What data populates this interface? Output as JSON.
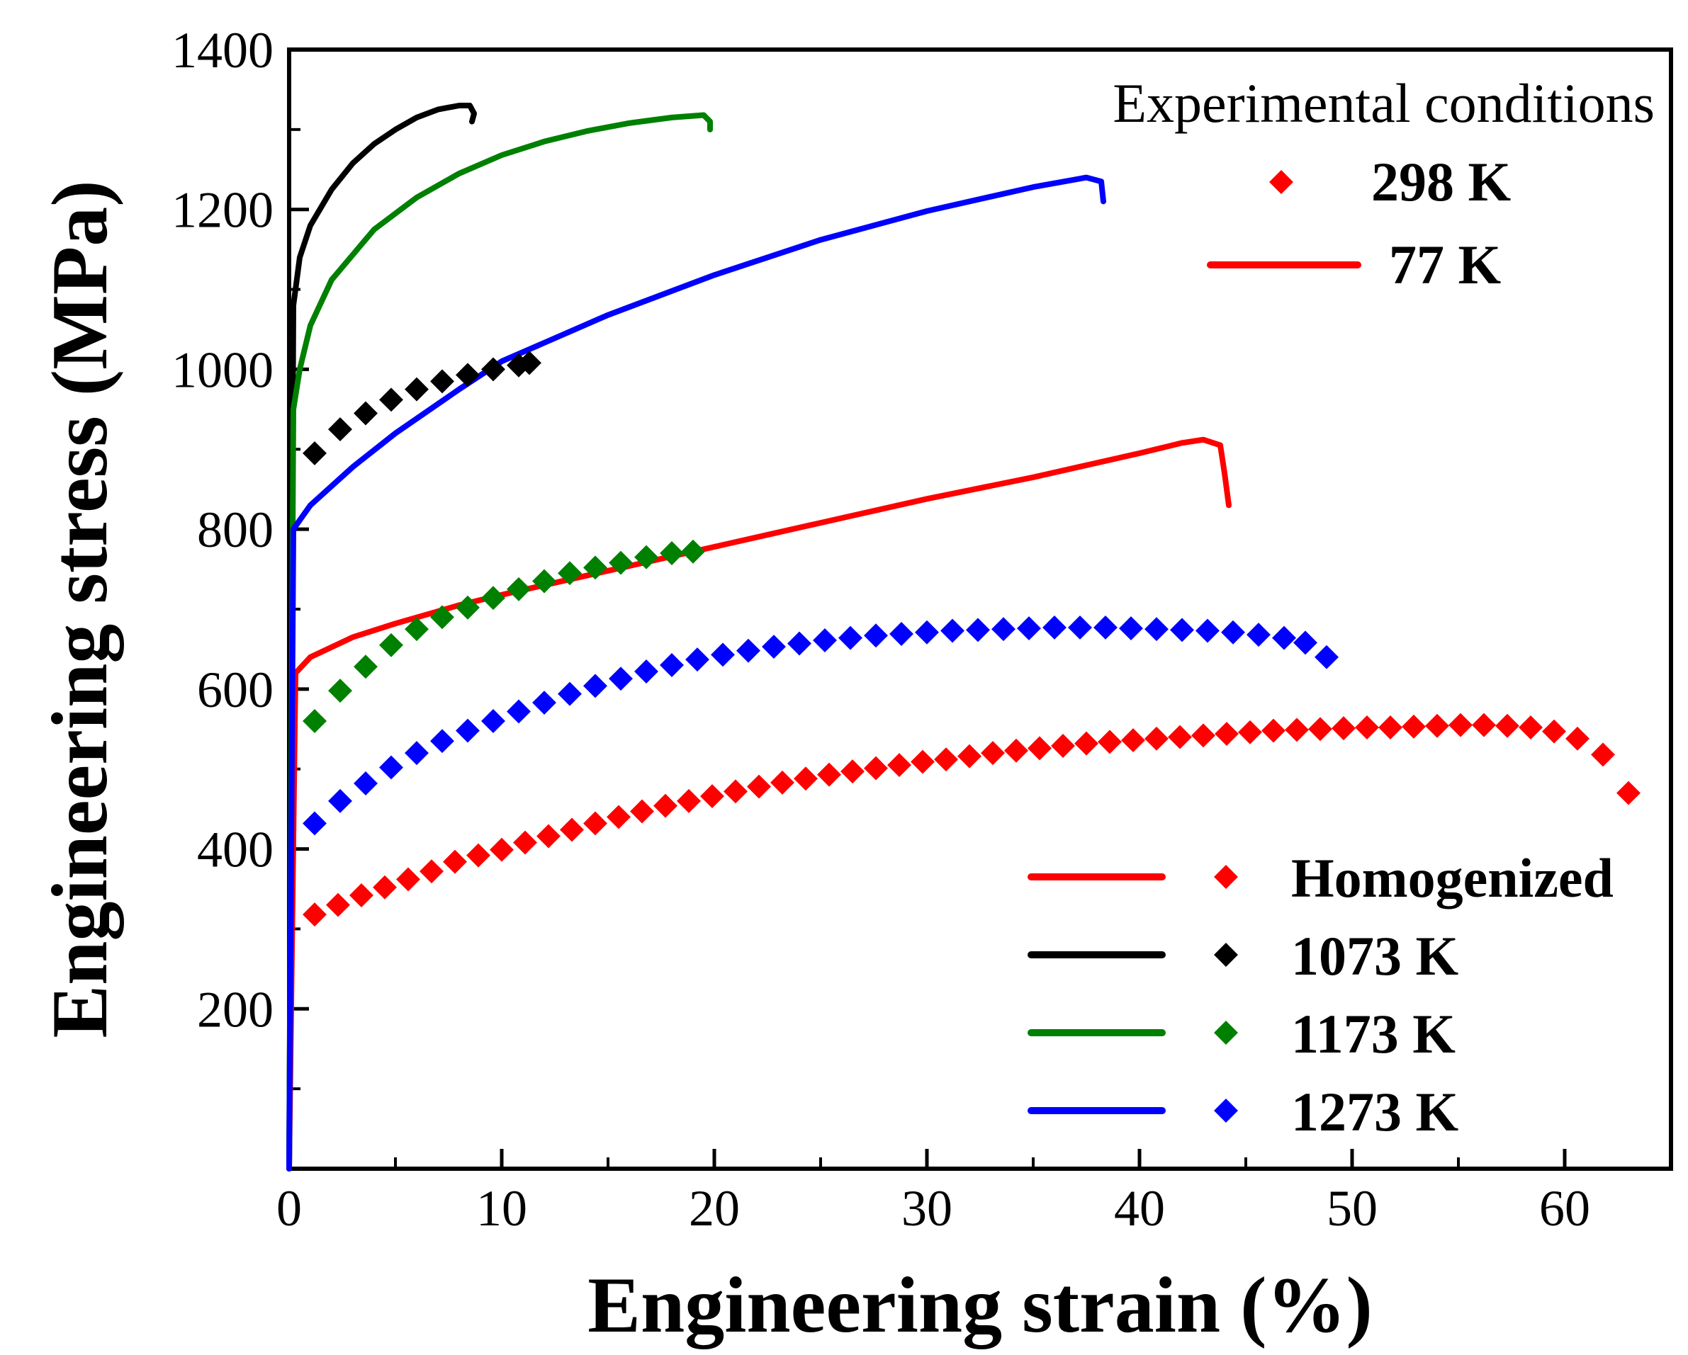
{
  "chart_data": {
    "type": "line",
    "title": "",
    "xlabel": "Engineering strain (%)",
    "ylabel": "Engineering stress (MPa)",
    "xlim": [
      0,
      65
    ],
    "ylim": [
      0,
      1400
    ],
    "x_ticks": [
      "0",
      "10",
      "20",
      "30",
      "40",
      "50",
      "60"
    ],
    "x_tick_values": [
      0,
      10,
      20,
      30,
      40,
      50,
      60
    ],
    "y_ticks": [
      "200",
      "400",
      "600",
      "800",
      "1000",
      "1200",
      "1400"
    ],
    "y_tick_values": [
      200,
      400,
      600,
      800,
      1000,
      1200,
      1400
    ],
    "colors": {
      "homogenized": "#ff0000",
      "k1073": "#000000",
      "k1173": "#008000",
      "k1273": "#0000ff"
    },
    "legend_conditions": {
      "title": "Experimental conditions",
      "marker_label": "298 K",
      "line_label": "77  K"
    },
    "legend_materials": [
      {
        "name": "Homogenized",
        "color": "#ff0000"
      },
      {
        "name": "1073 K",
        "color": "#000000"
      },
      {
        "name": "1173 K",
        "color": "#008000"
      },
      {
        "name": "1273 K",
        "color": "#0000ff"
      }
    ],
    "series": [
      {
        "name": "Homogenized 77 K",
        "style": "line",
        "color": "#ff0000",
        "x": [
          0,
          0.3,
          1,
          3,
          5,
          8,
          10,
          15,
          20,
          25,
          30,
          35,
          40,
          42,
          43,
          43.8,
          44,
          44.2
        ],
        "y": [
          0,
          620,
          640,
          665,
          682,
          705,
          718,
          748,
          778,
          808,
          838,
          865,
          895,
          908,
          912,
          905,
          870,
          830
        ]
      },
      {
        "name": "1073 K 77 K",
        "style": "line",
        "color": "#000000",
        "x": [
          0,
          0.2,
          0.5,
          1,
          2,
          3,
          4,
          5,
          6,
          7,
          8,
          8.5,
          8.7,
          8.6
        ],
        "y": [
          0,
          1080,
          1140,
          1180,
          1225,
          1258,
          1282,
          1300,
          1315,
          1325,
          1330,
          1330,
          1320,
          1310
        ]
      },
      {
        "name": "1173 K 77 K",
        "style": "line",
        "color": "#008000",
        "x": [
          0,
          0.2,
          0.5,
          1,
          2,
          4,
          6,
          8,
          10,
          12,
          14,
          16,
          18,
          19.5,
          19.8,
          19.8
        ],
        "y": [
          0,
          950,
          1000,
          1055,
          1112,
          1175,
          1215,
          1245,
          1268,
          1285,
          1298,
          1308,
          1315,
          1318,
          1310,
          1300
        ]
      },
      {
        "name": "1273 K 77 K",
        "style": "line",
        "color": "#0000ff",
        "x": [
          0,
          0.2,
          1,
          3,
          5,
          8,
          10,
          15,
          20,
          25,
          30,
          35,
          37.5,
          38.2,
          38.3
        ],
        "y": [
          0,
          800,
          830,
          878,
          920,
          975,
          1010,
          1068,
          1118,
          1162,
          1198,
          1228,
          1240,
          1235,
          1210
        ]
      },
      {
        "name": "Homogenized 298 K",
        "style": "marker",
        "color": "#ff0000",
        "x": [
          1.2,
          2.3,
          3.4,
          4.5,
          5.6,
          6.7,
          7.8,
          8.9,
          10,
          11.1,
          12.2,
          13.3,
          14.4,
          15.5,
          16.6,
          17.7,
          18.8,
          19.9,
          21,
          22.1,
          23.2,
          24.3,
          25.4,
          26.5,
          27.6,
          28.7,
          29.8,
          30.9,
          32,
          33.1,
          34.2,
          35.3,
          36.4,
          37.5,
          38.6,
          39.7,
          40.8,
          41.9,
          43,
          44.1,
          45.2,
          46.3,
          47.4,
          48.5,
          49.6,
          50.7,
          51.8,
          52.9,
          54,
          55.1,
          56.2,
          57.3,
          58.4,
          59.5,
          60.6,
          61.8,
          63
        ],
        "y": [
          318,
          330,
          342,
          352,
          362,
          372,
          384,
          392,
          399,
          408,
          416,
          424,
          432,
          440,
          447,
          454,
          460,
          466,
          472,
          478,
          483,
          488,
          493,
          497,
          501,
          505,
          509,
          512,
          516,
          520,
          523,
          526,
          529,
          532,
          534,
          536,
          538,
          540,
          542,
          544,
          546,
          548,
          549,
          550,
          551,
          552,
          552,
          553,
          554,
          555,
          555,
          554,
          552,
          547,
          538,
          518,
          470
        ]
      },
      {
        "name": "1073 K 298 K",
        "style": "marker",
        "color": "#000000",
        "x": [
          1.2,
          2.4,
          3.6,
          4.8,
          6,
          7.2,
          8.4,
          9.6,
          10.8,
          11.3
        ],
        "y": [
          895,
          925,
          945,
          962,
          975,
          985,
          993,
          1000,
          1005,
          1008
        ]
      },
      {
        "name": "1173 K 298 K",
        "style": "marker",
        "color": "#008000",
        "x": [
          1.2,
          2.4,
          3.6,
          4.8,
          6,
          7.2,
          8.4,
          9.6,
          10.8,
          12,
          13.2,
          14.4,
          15.6,
          16.8,
          18,
          19
        ],
        "y": [
          560,
          598,
          628,
          655,
          675,
          690,
          702,
          714,
          725,
          735,
          745,
          752,
          758,
          765,
          770,
          772
        ]
      },
      {
        "name": "1273 K 298 K",
        "style": "marker",
        "color": "#0000ff",
        "x": [
          1.2,
          2.4,
          3.6,
          4.8,
          6,
          7.2,
          8.4,
          9.6,
          10.8,
          12,
          13.2,
          14.4,
          15.6,
          16.8,
          18,
          19.2,
          20.4,
          21.6,
          22.8,
          24,
          25.2,
          26.4,
          27.6,
          28.8,
          30,
          31.2,
          32.4,
          33.6,
          34.8,
          36,
          37.2,
          38.4,
          39.6,
          40.8,
          42,
          43.2,
          44.4,
          45.6,
          46.8,
          47.8,
          48.8
        ],
        "y": [
          432,
          460,
          482,
          502,
          520,
          535,
          548,
          560,
          572,
          583,
          594,
          604,
          613,
          622,
          630,
          637,
          643,
          648,
          653,
          657,
          661,
          664,
          667,
          669,
          671,
          673,
          674,
          675,
          676,
          677,
          677,
          677,
          676,
          675,
          674,
          673,
          671,
          668,
          664,
          658,
          640
        ]
      }
    ]
  }
}
